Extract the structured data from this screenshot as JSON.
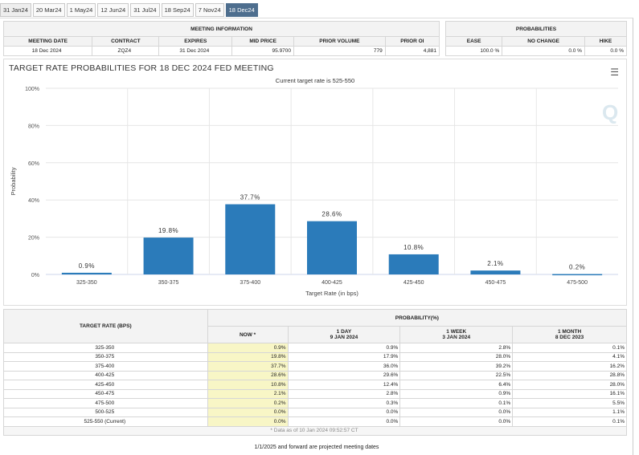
{
  "tabs": [
    "31 Jan24",
    "20 Mar24",
    "1 May24",
    "12 Jun24",
    "31 Jul24",
    "18 Sep24",
    "7 Nov24",
    "18 Dec24"
  ],
  "active_tab": "18 Dec24",
  "meeting_info": {
    "title": "MEETING INFORMATION",
    "headers": [
      "MEETING DATE",
      "CONTRACT",
      "EXPIRES",
      "MID PRICE",
      "PRIOR VOLUME",
      "PRIOR OI"
    ],
    "values": [
      "18 Dec 2024",
      "ZQZ4",
      "31 Dec 2024",
      "95.9700",
      "779",
      "4,881"
    ]
  },
  "probabilities": {
    "title": "PROBABILITIES",
    "headers": [
      "EASE",
      "NO CHANGE",
      "HIKE"
    ],
    "values": [
      "100.0 %",
      "0.0 %",
      "0.0 %"
    ]
  },
  "chart_data": {
    "type": "bar",
    "title": "TARGET RATE PROBABILITIES FOR 18 DEC 2024 FED MEETING",
    "subtitle": "Current target rate is 525-550",
    "xlabel": "Target Rate (in bps)",
    "ylabel": "Probability",
    "categories": [
      "325-350",
      "350-375",
      "375-400",
      "400-425",
      "425-450",
      "450-475",
      "475-500"
    ],
    "values": [
      0.9,
      19.8,
      37.7,
      28.6,
      10.8,
      2.1,
      0.2
    ],
    "data_labels": [
      "0.9%",
      "19.8%",
      "37.7%",
      "28.6%",
      "10.8%",
      "2.1%",
      "0.2%"
    ],
    "ylim": [
      0,
      100
    ],
    "yticks": [
      "0%",
      "20%",
      "40%",
      "60%",
      "80%",
      "100%"
    ],
    "color": "#2b7bba",
    "grid": true
  },
  "table": {
    "header_rate": "TARGET RATE (BPS)",
    "header_prob": "PROBABILITY(%)",
    "columns": [
      {
        "l1": "NOW *",
        "l2": ""
      },
      {
        "l1": "1 DAY",
        "l2": "9 JAN 2024"
      },
      {
        "l1": "1 WEEK",
        "l2": "3 JAN 2024"
      },
      {
        "l1": "1 MONTH",
        "l2": "8 DEC 2023"
      }
    ],
    "rows": [
      [
        "325-350",
        "0.9%",
        "0.9%",
        "2.8%",
        "0.1%"
      ],
      [
        "350-375",
        "19.8%",
        "17.9%",
        "28.0%",
        "4.1%"
      ],
      [
        "375-400",
        "37.7%",
        "36.0%",
        "39.2%",
        "16.2%"
      ],
      [
        "400-425",
        "28.6%",
        "29.6%",
        "22.5%",
        "28.8%"
      ],
      [
        "425-450",
        "10.8%",
        "12.4%",
        "6.4%",
        "28.0%"
      ],
      [
        "450-475",
        "2.1%",
        "2.8%",
        "0.9%",
        "16.1%"
      ],
      [
        "475-500",
        "0.2%",
        "0.3%",
        "0.1%",
        "5.5%"
      ],
      [
        "500-525",
        "0.0%",
        "0.0%",
        "0.0%",
        "1.1%"
      ],
      [
        "525-550 (Current)",
        "0.0%",
        "0.0%",
        "0.0%",
        "0.1%"
      ]
    ],
    "note": "* Data as of 10 Jan 2024 09:52:57 CT"
  },
  "footer": "1/1/2025 and forward are projected meeting dates"
}
